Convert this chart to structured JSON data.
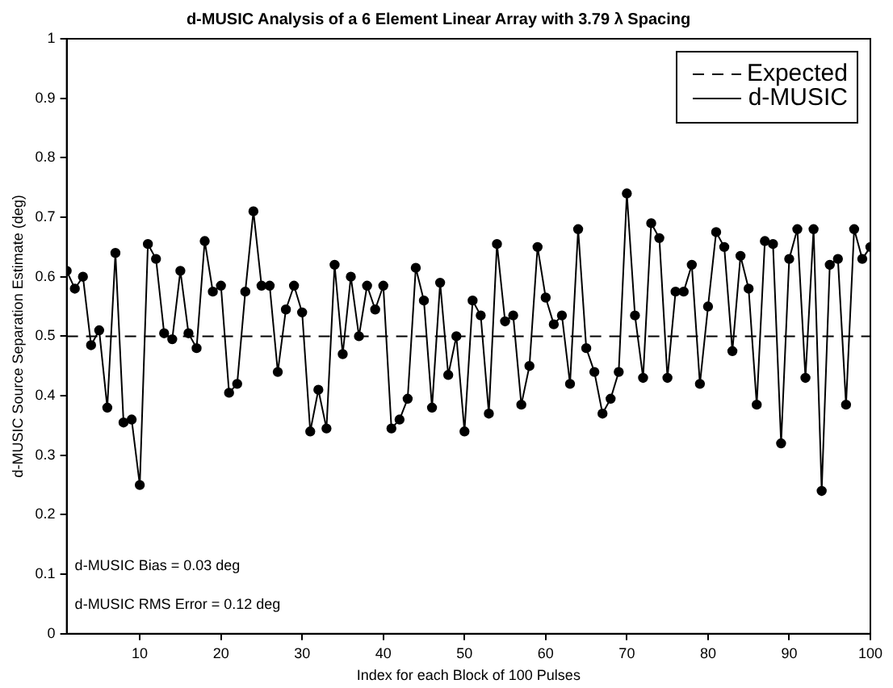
{
  "chart_data": {
    "type": "line",
    "title": "d-MUSIC Analysis of a 6 Element Linear Array with 3.79 λ Spacing",
    "xlabel": "Index for each Block of 100 Pulses",
    "ylabel": "d-MUSIC Source Separation Estimate (deg)",
    "x": [
      1,
      2,
      3,
      4,
      5,
      6,
      7,
      8,
      9,
      10,
      11,
      12,
      13,
      14,
      15,
      16,
      17,
      18,
      19,
      20,
      21,
      22,
      23,
      24,
      25,
      26,
      27,
      28,
      29,
      30,
      31,
      32,
      33,
      34,
      35,
      36,
      37,
      38,
      39,
      40,
      41,
      42,
      43,
      44,
      45,
      46,
      47,
      48,
      49,
      50,
      51,
      52,
      53,
      54,
      55,
      56,
      57,
      58,
      59,
      60,
      61,
      62,
      63,
      64,
      65,
      66,
      67,
      68,
      69,
      70,
      71,
      72,
      73,
      74,
      75,
      76,
      77,
      78,
      79,
      80,
      81,
      82,
      83,
      84,
      85,
      86,
      87,
      88,
      89,
      90,
      91,
      92,
      93,
      94,
      95,
      96,
      97,
      98,
      99,
      100
    ],
    "series": [
      {
        "name": "Expected",
        "color": "#000000",
        "x": [
          1,
          100
        ],
        "values": [
          0.5,
          0.5
        ],
        "line_style": "dashed",
        "marker": "none"
      },
      {
        "name": "d-MUSIC",
        "color": "#000000",
        "line_style": "solid",
        "marker": "circle",
        "values": [
          0.61,
          0.58,
          0.6,
          0.485,
          0.51,
          0.38,
          0.64,
          0.355,
          0.36,
          0.25,
          0.655,
          0.63,
          0.505,
          0.495,
          0.61,
          0.505,
          0.48,
          0.66,
          0.575,
          0.585,
          0.405,
          0.42,
          0.575,
          0.71,
          0.585,
          0.585,
          0.44,
          0.545,
          0.585,
          0.54,
          0.34,
          0.41,
          0.345,
          0.62,
          0.47,
          0.6,
          0.5,
          0.585,
          0.545,
          0.585,
          0.345,
          0.36,
          0.395,
          0.615,
          0.56,
          0.38,
          0.59,
          0.435,
          0.5,
          0.34,
          0.56,
          0.535,
          0.37,
          0.655,
          0.525,
          0.535,
          0.385,
          0.45,
          0.65,
          0.565,
          0.52,
          0.535,
          0.42,
          0.68,
          0.48,
          0.44,
          0.37,
          0.395,
          0.44,
          0.74,
          0.535,
          0.43,
          0.69,
          0.665,
          0.43,
          0.575,
          0.575,
          0.62,
          0.42,
          0.55,
          0.675,
          0.65,
          0.475,
          0.635,
          0.58,
          0.385,
          0.66,
          0.655,
          0.32,
          0.63,
          0.68,
          0.43,
          0.68,
          0.24,
          0.62,
          0.63,
          0.385,
          0.68,
          0.63,
          0.65
        ]
      }
    ],
    "xlim": [
      1,
      100
    ],
    "xticks": [
      10,
      20,
      30,
      40,
      50,
      60,
      70,
      80,
      90,
      100
    ],
    "ylim": [
      0,
      1
    ],
    "yticks": [
      0,
      0.1,
      0.2,
      0.3,
      0.4,
      0.5,
      0.6,
      0.7,
      0.8,
      0.9,
      1
    ],
    "grid": false,
    "legend": "top right",
    "annotations": [
      "d-MUSIC Bias = 0.03 deg",
      "d-MUSIC RMS Error = 0.12 deg"
    ]
  }
}
